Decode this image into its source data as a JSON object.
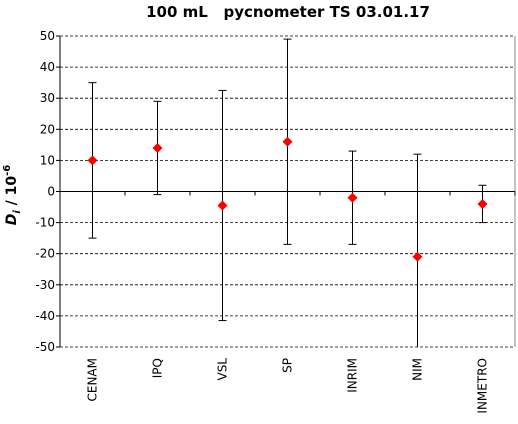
{
  "chart_data": {
    "type": "errorbar",
    "title": "100 mL   pycnometer TS 03.01.17",
    "ylabel": {
      "symbol": "D",
      "subscript": "i",
      "unit": " / 10",
      "exponent": "-6"
    },
    "categories": [
      "CENAM",
      "IPQ",
      "VSL",
      "SP",
      "INRIM",
      "NIM",
      "INMETRO"
    ],
    "values": [
      10,
      14,
      -4.5,
      16,
      -2,
      -21,
      -4
    ],
    "errors": [
      25,
      15,
      37,
      33,
      15,
      33,
      6
    ],
    "color": "#ff0000",
    "ylim": [
      -50,
      50
    ],
    "yticks": [
      -50,
      -40,
      -30,
      -20,
      -10,
      0,
      10,
      20,
      30,
      40,
      50
    ],
    "grid": true
  }
}
